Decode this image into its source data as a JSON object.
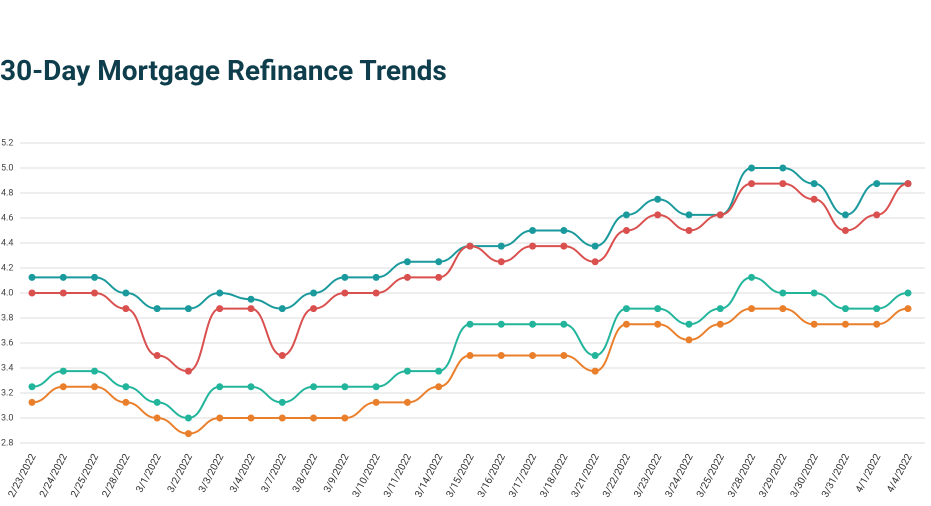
{
  "chart_data": {
    "type": "line",
    "title": "30-Day Mortgage Refinance Trends",
    "categories": [
      "2/23/2022",
      "2/24/2022",
      "2/25/2022",
      "2/28/2022",
      "3/1/2022",
      "3/2/2022",
      "3/3/2022",
      "3/4/2022",
      "3/7/2022",
      "3/8/2022",
      "3/9/2022",
      "3/10/2022",
      "3/11/2022",
      "3/14/2022",
      "3/15/2022",
      "3/16/2022",
      "3/17/2022",
      "3/18/2022",
      "3/21/2022",
      "3/22/2022",
      "3/23/2022",
      "3/24/2022",
      "3/25/2022",
      "3/28/2022",
      "3/29/2022",
      "3/30/2022",
      "3/31/2022",
      "4/1/2022",
      "4/4/2022"
    ],
    "series": [
      {
        "color": "#1a9a9c",
        "values": [
          4.125,
          4.125,
          4.125,
          4.0,
          3.875,
          3.875,
          4.0,
          3.95,
          3.875,
          4.0,
          4.125,
          4.125,
          4.25,
          4.25,
          4.375,
          4.375,
          4.5,
          4.5,
          4.375,
          4.625,
          4.75,
          4.625,
          4.625,
          5.0,
          5.0,
          4.875,
          4.625,
          4.875,
          4.875
        ]
      },
      {
        "color": "#d9504f",
        "values": [
          4.0,
          4.0,
          4.0,
          3.875,
          3.5,
          3.375,
          3.875,
          3.875,
          3.5,
          3.875,
          4.0,
          4.0,
          4.125,
          4.125,
          4.375,
          4.25,
          4.375,
          4.375,
          4.25,
          4.5,
          4.625,
          4.5,
          4.625,
          4.875,
          4.875,
          4.75,
          4.5,
          4.625,
          4.875
        ]
      },
      {
        "color": "#22b59c",
        "values": [
          3.25,
          3.375,
          3.375,
          3.25,
          3.125,
          3.0,
          3.25,
          3.25,
          3.125,
          3.25,
          3.25,
          3.25,
          3.375,
          3.375,
          3.75,
          3.75,
          3.75,
          3.75,
          3.5,
          3.875,
          3.875,
          3.75,
          3.875,
          4.125,
          4.0,
          4.0,
          3.875,
          3.875,
          4.0
        ]
      },
      {
        "color": "#ea7f2b",
        "values": [
          3.125,
          3.25,
          3.25,
          3.125,
          3.0,
          2.875,
          3.0,
          3.0,
          3.0,
          3.0,
          3.0,
          3.125,
          3.125,
          3.25,
          3.5,
          3.5,
          3.5,
          3.5,
          3.375,
          3.75,
          3.75,
          3.625,
          3.75,
          3.875,
          3.875,
          3.75,
          3.75,
          3.75,
          3.875
        ]
      }
    ],
    "ylim": [
      2.8,
      5.2
    ],
    "yticks": [
      2.8,
      {
        "value": 3,
        "label": "3.0"
      },
      3.2,
      3.4,
      3.6,
      3.8,
      {
        "value": 4,
        "label": "4.0"
      },
      4.2,
      4.4,
      4.6,
      4.8,
      {
        "value": 5,
        "label": "5.0"
      },
      5.2
    ],
    "grid": true
  }
}
